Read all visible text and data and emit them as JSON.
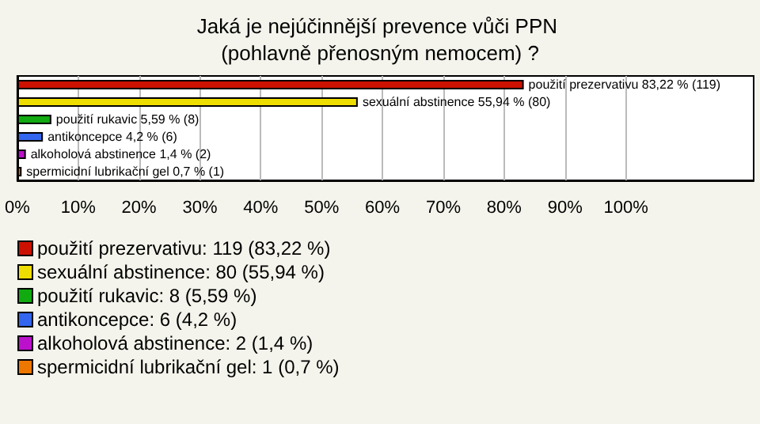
{
  "chart_data": {
    "type": "bar",
    "orientation": "horizontal",
    "title": "Jaká je nejúčinnější prevence vůči PPN (pohlavně přenosným nemocem) ?",
    "categories": [
      null,
      null,
      null,
      null,
      null,
      null
    ],
    "series": [
      {
        "name": "použití prezervativu: 119 (83,22 %)",
        "color": "#cc1100",
        "values": [
          83.22,
          null,
          null,
          null,
          null,
          null
        ],
        "value_labels": [
          "použití prezervativu 83,22 % (119)",
          null,
          null,
          null,
          null,
          null
        ]
      },
      {
        "name": "sexuální abstinence: 80 (55,94 %)",
        "color": "#eedd00",
        "values": [
          null,
          55.94,
          null,
          null,
          null,
          null
        ],
        "value_labels": [
          null,
          "sexuální abstinence 55,94 % (80)",
          null,
          null,
          null,
          null
        ]
      },
      {
        "name": "použití rukavic: 8 (5,59 %)",
        "color": "#11aa11",
        "values": [
          null,
          null,
          5.59,
          null,
          null,
          null
        ],
        "value_labels": [
          null,
          null,
          "použití rukavic 5,59 % (8)",
          null,
          null,
          null
        ]
      },
      {
        "name": "antikoncepce: 6 (4,2 %)",
        "color": "#3366ee",
        "values": [
          null,
          null,
          null,
          4.2,
          null,
          null
        ],
        "value_labels": [
          null,
          null,
          null,
          "antikoncepce 4,2 % (6)",
          null,
          null
        ]
      },
      {
        "name": "alkoholová abstinence: 2 (1,4 %)",
        "color": "#bb11cc",
        "values": [
          null,
          null,
          null,
          null,
          1.4,
          null
        ],
        "value_labels": [
          null,
          null,
          null,
          null,
          "alkoholová abstinence 1,4 % (2)",
          null
        ]
      },
      {
        "name": "spermicidní lubrikační gel: 1 (0,7 %)",
        "color": "#ee7700",
        "values": [
          null,
          null,
          null,
          null,
          null,
          0.7
        ],
        "value_labels": [
          null,
          null,
          null,
          null,
          null,
          "spermicidní lubrikační gel 0,7 % (1)"
        ]
      }
    ],
    "xlim": [
      0,
      121
    ],
    "xticks": [
      {
        "value": 0,
        "label": "0%"
      },
      {
        "value": 10,
        "label": "10%"
      },
      {
        "value": 20,
        "label": "20%"
      },
      {
        "value": 30,
        "label": "30%"
      },
      {
        "value": 40,
        "label": "40%"
      },
      {
        "value": 50,
        "label": "50%"
      },
      {
        "value": 60,
        "label": "60%"
      },
      {
        "value": 70,
        "label": "70%"
      },
      {
        "value": 80,
        "label": "80%"
      },
      {
        "value": 90,
        "label": "90%"
      },
      {
        "value": 100,
        "label": "100%"
      }
    ],
    "grid": "x",
    "legend": "bottom left",
    "tick_labels": "x"
  }
}
